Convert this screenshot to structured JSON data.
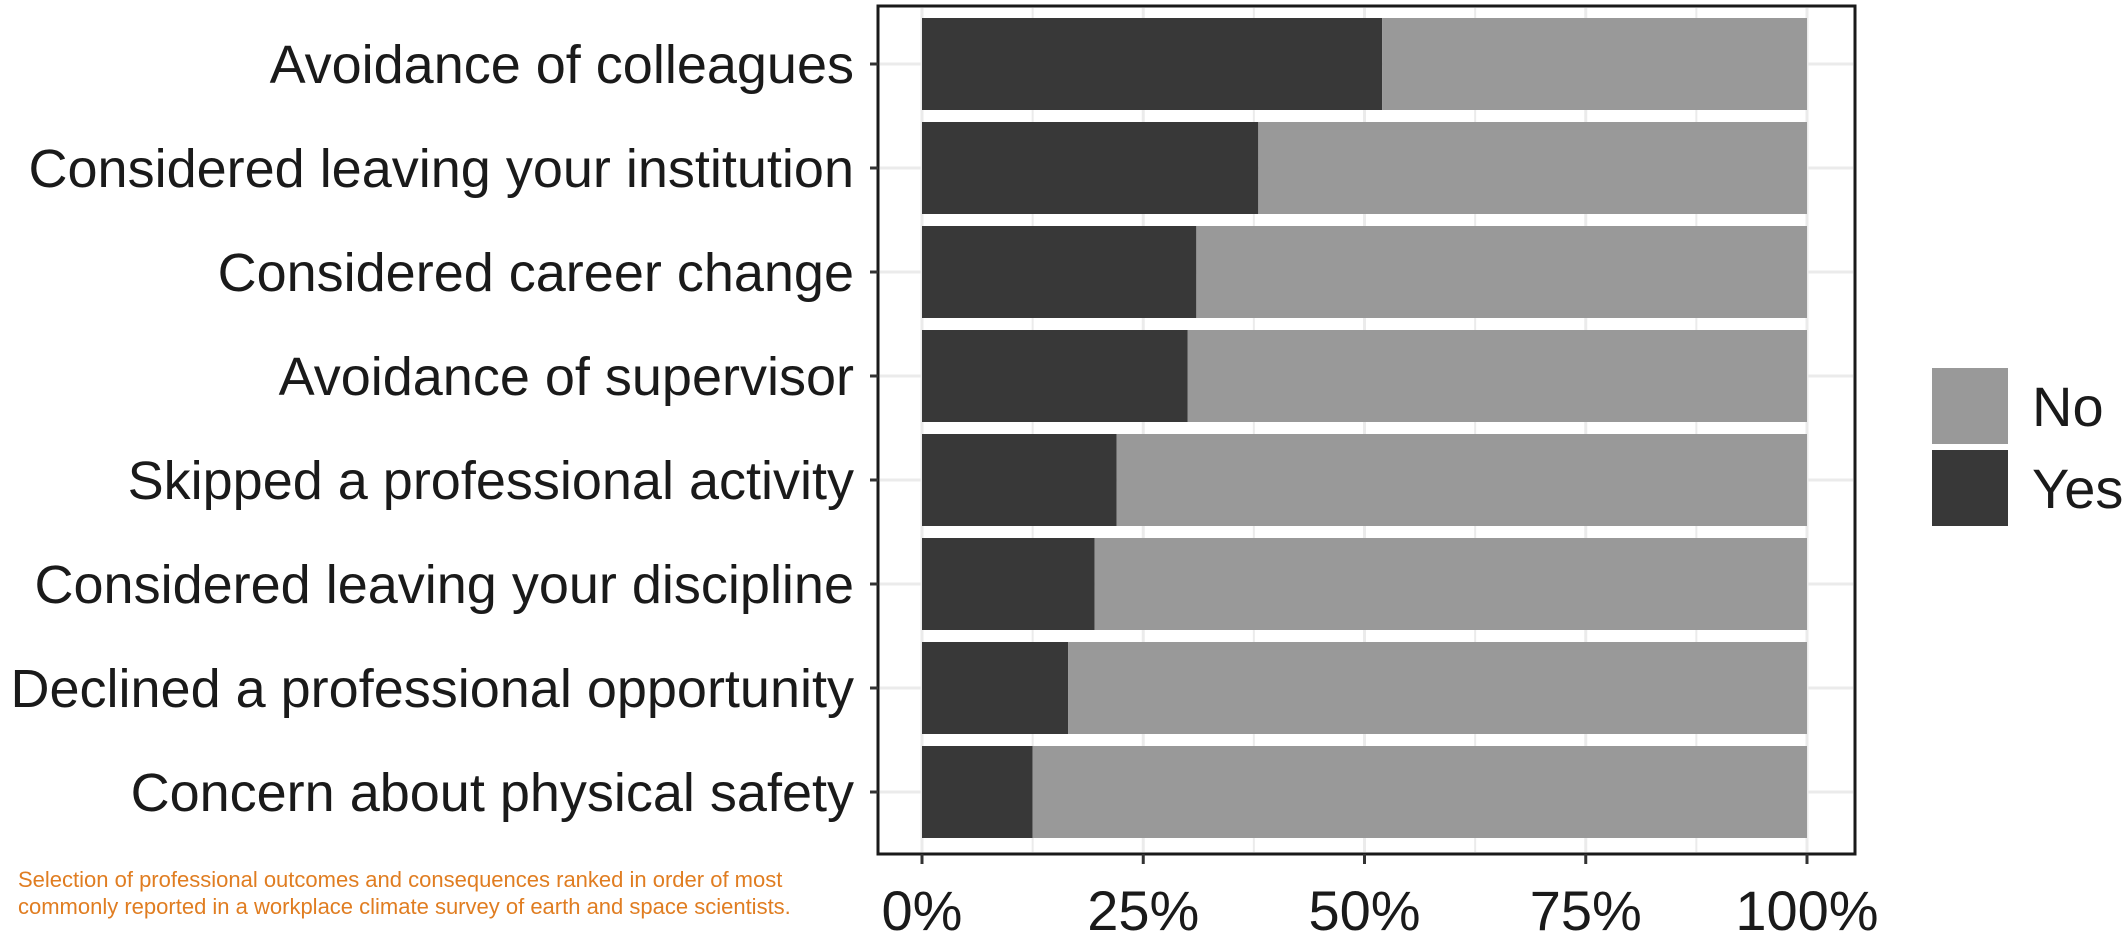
{
  "caption": "Selection of professional outcomes and consequences ranked in order of most commonly reported in a workplace climate survey of earth and space scientists.",
  "chart_data": {
    "type": "bar",
    "orientation": "horizontal",
    "stacked": true,
    "categories": [
      "Avoidance of colleagues",
      "Considered leaving your institution",
      "Considered career change",
      "Avoidance of supervisor",
      "Skipped a professional activity",
      "Considered leaving your discipline",
      "Declined a professional opportunity",
      "Concern about physical safety"
    ],
    "series": [
      {
        "name": "Yes",
        "color": "#383838",
        "values": [
          52,
          38,
          31,
          30,
          22,
          19.5,
          16.5,
          12.5
        ]
      },
      {
        "name": "No",
        "color": "#999999",
        "values": [
          48,
          62,
          69,
          70,
          78,
          80.5,
          83.5,
          87.5
        ]
      }
    ],
    "xlim": [
      0,
      100
    ],
    "xticks": [
      "0%",
      "25%",
      "50%",
      "75%",
      "100%"
    ],
    "xtick_values": [
      0,
      25,
      50,
      75,
      100
    ],
    "legend": {
      "position": "right",
      "entries": [
        "No",
        "Yes"
      ]
    },
    "grid": true
  }
}
